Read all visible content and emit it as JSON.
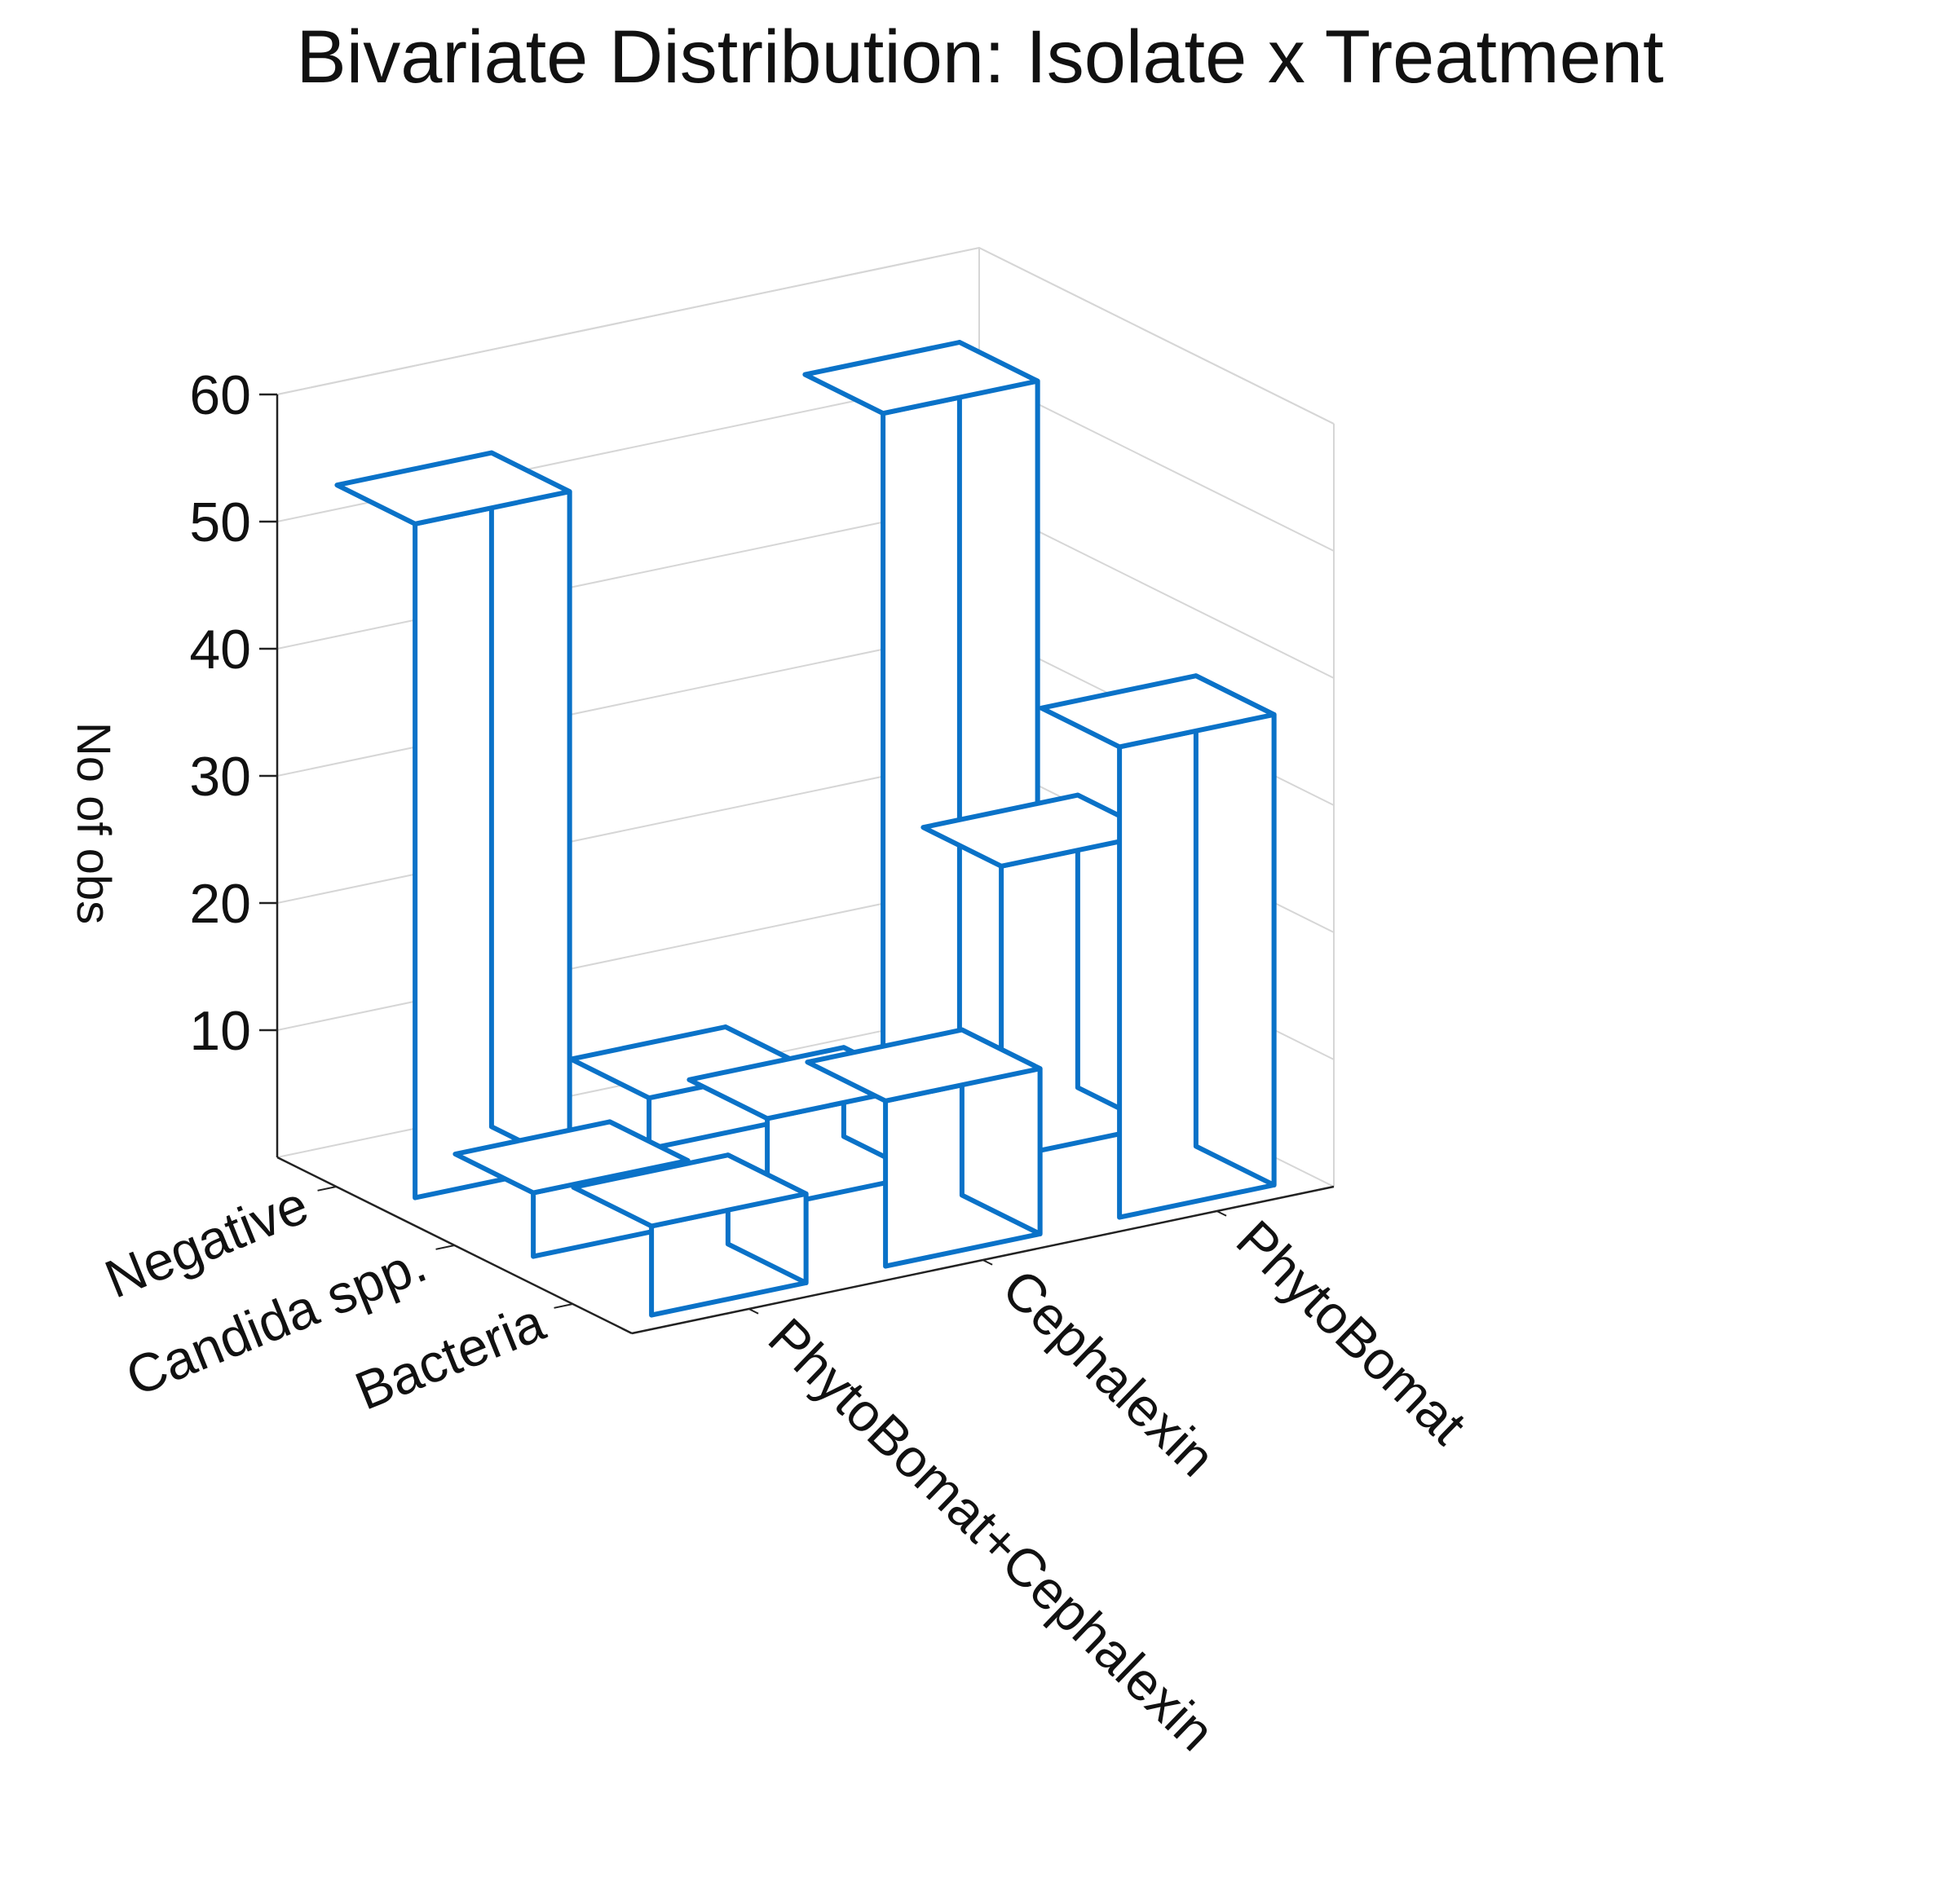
{
  "chart_data": {
    "type": "bar3d",
    "title": "Bivariate Distribution: Isolate x Treatment",
    "ylabel": "No of obs",
    "isolates": [
      "Negative",
      "Candida spp.",
      "Bacteria"
    ],
    "treatments": [
      "PhytoBomat+Cephalexin",
      "Cephalexin",
      "PhytoBomat"
    ],
    "zlim": [
      0,
      60
    ],
    "zticks": [
      10,
      20,
      30,
      40,
      50,
      60
    ],
    "values": [
      [
        53,
        4,
        54
      ],
      [
        5,
        7,
        23
      ],
      [
        7,
        13,
        37
      ]
    ],
    "colors": {
      "bar_edge": "#0a72c8",
      "bar_fill": "#ffffff",
      "grid": "#d6d6d6",
      "axis": "#222222"
    }
  }
}
